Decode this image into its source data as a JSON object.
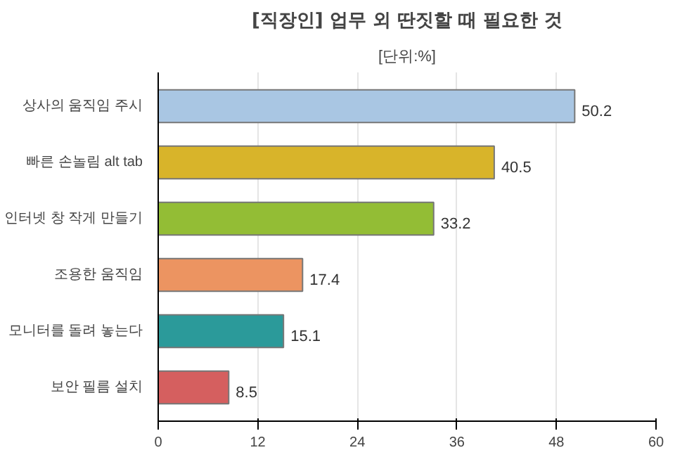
{
  "chart_data": {
    "type": "bar",
    "orientation": "horizontal",
    "title": "[직장인] 업무 외 딴짓할 때 필요한 것",
    "subtitle": "[단위:%]",
    "categories": [
      "상사의 움직임 주시",
      "빠른 손놀림 alt tab",
      "인터넷 창 작게 만들기",
      "조용한 움직임",
      "모니터를 돌려 놓는다",
      "보안 필름 설치"
    ],
    "values": [
      50.2,
      40.5,
      33.2,
      17.4,
      15.1,
      8.5
    ],
    "colors": [
      "#a9c6e3",
      "#d8b42a",
      "#93bd35",
      "#ec9461",
      "#2b9a9a",
      "#d55f5f"
    ],
    "xlim": [
      0,
      60
    ],
    "xticks": [
      0,
      12,
      24,
      36,
      48,
      60
    ],
    "grid": "x",
    "data_labels": true
  }
}
